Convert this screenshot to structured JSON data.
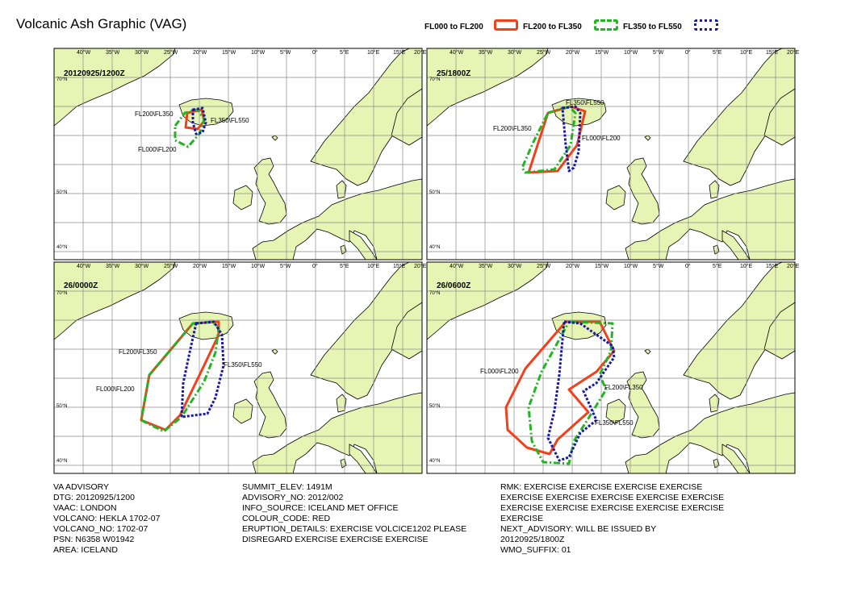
{
  "title": "Volcanic Ash Graphic (VAG)",
  "legend": [
    {
      "label": "FL000 to FL200",
      "color": "#f0401c",
      "style": "solid"
    },
    {
      "label": "FL200 to FL350",
      "color": "#22b422",
      "style": "dashdot"
    },
    {
      "label": "FL350 to FL550",
      "color": "#1818a8",
      "style": "dotted"
    }
  ],
  "top_lon_labels": [
    "40°W",
    "35°W",
    "30°W",
    "25°W",
    "20°W",
    "15°W",
    "10°W",
    "5°W",
    "0°",
    "5°E",
    "10°E",
    "15°E",
    "20°E"
  ],
  "lat_labels": [
    "70°N",
    "50°N",
    "40°N"
  ],
  "panels": [
    {
      "time": "20120925/1200Z",
      "labels": [
        "FL200\\FL350",
        "FL350\\FL550",
        "FL000\\FL200"
      ]
    },
    {
      "time": "25/1800Z",
      "labels": [
        "FL350\\FL550",
        "FL200\\FL350",
        "FL000\\FL200"
      ]
    },
    {
      "time": "26/0000Z",
      "labels": [
        "FL200\\FL350",
        "FL350\\FL550",
        "FL000\\FL200"
      ]
    },
    {
      "time": "26/0600Z",
      "labels": [
        "FL000\\FL200",
        "FL200\\FL350",
        "FL350\\FL550"
      ]
    }
  ],
  "map_colors": {
    "land": "#e6f5b4",
    "sea": "#ffffff",
    "coast": "#000000",
    "grid": "#888888"
  },
  "info": {
    "col1": [
      "VA ADVISORY",
      "DTG: 20120925/1200",
      "VAAC: LONDON",
      "VOLCANO: HEKLA 1702-07",
      "VOLCANO_NO: 1702-07",
      "PSN: N6358 W01942",
      "AREA: ICELAND"
    ],
    "col2": [
      "SUMMIT_ELEV: 1491M",
      "ADVISORY_NO: 2012/002",
      "INFO_SOURCE: ICELAND MET OFFICE",
      "COLOUR_CODE: RED",
      "ERUPTION_DETAILS: EXERCISE VOLCICE1202 PLEASE",
      "DISREGARD EXERCISE EXERCISE EXERCISE"
    ],
    "col3": [
      "RMK: EXERCISE EXERCISE EXERCISE EXERCISE",
      "EXERCISE EXERCISE EXERCISE EXERCISE EXERCISE",
      "EXERCISE EXERCISE EXERCISE EXERCISE EXERCISE",
      "EXERCISE",
      "NEXT_ADVISORY: WILL BE ISSUED BY",
      "20120925/1800Z",
      "WMO_SUFFIX: 01"
    ]
  }
}
